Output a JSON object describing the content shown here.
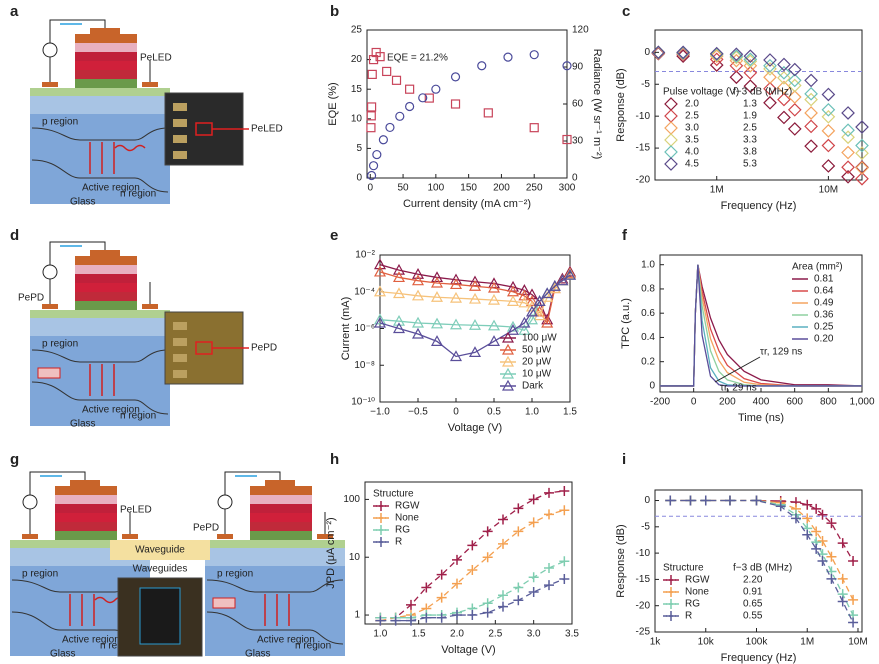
{
  "diagrams": [
    {
      "label": "a",
      "device": "PeLED",
      "photo_label": "PeLED",
      "layers": [
        "p region",
        "Active region",
        "n region",
        "Glass"
      ]
    },
    {
      "label": "d",
      "device": "PePD",
      "photo_label": "PePD",
      "layers": [
        "p region",
        "Active region",
        "n region",
        "Glass"
      ]
    },
    {
      "label": "g",
      "device_left": "PeLED",
      "device_right": "PePD",
      "waveguide": "Waveguide",
      "photo_label": "Waveguides",
      "layers": [
        "p region",
        "Active region",
        "n region",
        "Glass"
      ]
    }
  ],
  "chart_data": [
    {
      "type": "scatter",
      "label": "b",
      "xlabel": "Current density (mA cm⁻²)",
      "ylabel": "EQE (%)",
      "y2label": "Radiance (W sr⁻¹ m⁻²)",
      "annotation": "EQE = 21.2%",
      "xlim": [
        -5,
        300
      ],
      "xticks": [
        0,
        50,
        100,
        150,
        200,
        250,
        300
      ],
      "ylim": [
        0,
        25
      ],
      "yticks": [
        0,
        5,
        10,
        15,
        20,
        25
      ],
      "y2lim": [
        0,
        120
      ],
      "y2ticks": [
        0,
        30,
        60,
        90,
        120
      ],
      "series": [
        {
          "name": "EQE",
          "color": "#c8445a",
          "marker": "square",
          "x": [
            1,
            1.5,
            2,
            3,
            5,
            9,
            15,
            25,
            40,
            60,
            90,
            130,
            180,
            250,
            300
          ],
          "values": [
            8.5,
            10.5,
            12,
            17.5,
            20,
            21.2,
            20.5,
            18,
            16.5,
            15,
            13.5,
            12.5,
            11,
            8.5,
            6.5
          ]
        },
        {
          "name": "Radiance",
          "color": "#4a4a9a",
          "marker": "circle",
          "axis": "y2",
          "x": [
            2,
            5,
            10,
            20,
            30,
            45,
            60,
            80,
            100,
            130,
            170,
            210,
            250,
            300
          ],
          "values": [
            2,
            10,
            19,
            31,
            41,
            50,
            58,
            65,
            72,
            82,
            91,
            98,
            100,
            91
          ]
        }
      ]
    },
    {
      "type": "scatter",
      "label": "c",
      "xlabel": "Frequency (Hz)",
      "ylabel": "Response (dB)",
      "xscale": "log",
      "legend": "lower left",
      "legend_title": "Pulse voltage (V)",
      "legend_title2": "f−3 dB (MHz)",
      "hline": -3,
      "xlim": [
        280000,
        20000000
      ],
      "xticks": [
        {
          "value": 1000000,
          "label": "1M"
        },
        {
          "value": 10000000,
          "label": "10M"
        }
      ],
      "ylim": [
        -20,
        3.5
      ],
      "yticks": [
        0,
        -5,
        -10,
        -15,
        -20
      ],
      "x": [
        300000,
        500000,
        1000000,
        1500000,
        2000000,
        3000000,
        4000000,
        5000000,
        7000000,
        10000000,
        15000000,
        20000000
      ],
      "series": [
        {
          "name": "2.0",
          "f3db": 1.3,
          "color": "#8b1a3a",
          "marker": "diamond",
          "values": [
            -0.2,
            -0.6,
            -2.0,
            -3.9,
            -5.3,
            -7.9,
            -10.2,
            -12.0,
            -14.7,
            -17.8,
            -19.5,
            -18
          ]
        },
        {
          "name": "2.5",
          "f3db": 1.9,
          "color": "#d0454a",
          "marker": "diamond",
          "values": [
            -0.1,
            -0.3,
            -1.1,
            -2.1,
            -3.2,
            -5.7,
            -7.4,
            -9.0,
            -11.6,
            -14.6,
            -18.0,
            -19.8
          ]
        },
        {
          "name": "3.0",
          "f3db": 2.5,
          "color": "#f4a460",
          "marker": "diamond",
          "values": [
            -0.1,
            -0.2,
            -0.6,
            -1.3,
            -2.1,
            -3.9,
            -5.5,
            -7.0,
            -9.5,
            -12.3,
            -15.7,
            -18.1
          ]
        },
        {
          "name": "3.5",
          "f3db": 3.3,
          "color": "#d9d27a",
          "marker": "diamond",
          "values": [
            0,
            -0.1,
            -0.4,
            -0.8,
            -1.4,
            -2.6,
            -4.0,
            -5.2,
            -7.4,
            -10.1,
            -13.3,
            -15.8
          ]
        },
        {
          "name": "4.0",
          "f3db": 3.8,
          "color": "#6cc0b8",
          "marker": "diamond",
          "values": [
            0,
            -0.1,
            -0.3,
            -0.6,
            -1.1,
            -2.1,
            -3.2,
            -4.4,
            -6.5,
            -9.0,
            -12.2,
            -14.6
          ]
        },
        {
          "name": "4.5",
          "f3db": 5.3,
          "color": "#5a4a8a",
          "marker": "diamond",
          "values": [
            0,
            0,
            -0.2,
            -0.3,
            -0.6,
            -1.2,
            -1.9,
            -2.7,
            -4.4,
            -6.6,
            -9.5,
            -11.7
          ]
        }
      ]
    },
    {
      "type": "line",
      "label": "e",
      "xlabel": "Voltage (V)",
      "ylabel": "Current (mA)",
      "yscale": "log",
      "legend": "lower right",
      "xlim": [
        -1,
        1.5
      ],
      "xticks": [
        {
          "value": -1,
          "label": "−1.0"
        },
        {
          "value": -0.5,
          "label": "−0.5"
        },
        0,
        0.5,
        {
          "value": 1,
          "label": "1.0"
        },
        1.5
      ],
      "ylim": [
        1e-10,
        0.01
      ],
      "yticks": [
        {
          "value": 1e-10,
          "label": "10⁻¹⁰"
        },
        {
          "value": 1e-08,
          "label": "10⁻⁸"
        },
        {
          "value": 1e-06,
          "label": "10⁻⁶"
        },
        {
          "value": 0.0001,
          "label": "10⁻⁴"
        },
        {
          "value": 0.01,
          "label": "10⁻²"
        }
      ],
      "x": [
        -1,
        -0.75,
        -0.5,
        -0.25,
        0,
        0.25,
        0.5,
        0.75,
        0.9,
        1.0,
        1.1,
        1.2,
        1.3,
        1.4,
        1.5
      ],
      "series": [
        {
          "name": "100 μW",
          "color": "#8b1a4a",
          "marker": "triangle",
          "values": [
            0.003,
            0.0015,
            0.0009,
            0.0006,
            0.00045,
            0.00035,
            0.00028,
            0.00018,
            0.00012,
            7e-05,
            3e-05,
            3e-06,
            0.0002,
            0.0005,
            0.0012
          ]
        },
        {
          "name": "50 μW",
          "color": "#e06040",
          "marker": "triangle",
          "values": [
            0.0012,
            0.0006,
            0.0004,
            0.0003,
            0.00025,
            0.0002,
            0.00016,
            0.0001,
            6e-05,
            3e-05,
            8e-06,
            2e-06,
            0.00015,
            0.0004,
            0.001
          ]
        },
        {
          "name": "20 μW",
          "color": "#f6c27a",
          "marker": "triangle",
          "values": [
            0.0001,
            8e-05,
            6e-05,
            5e-05,
            4.5e-05,
            4e-05,
            3.5e-05,
            3e-05,
            2.5e-05,
            1.5e-05,
            5e-06,
            5e-05,
            0.00015,
            0.0004,
            0.0009
          ]
        },
        {
          "name": "10 μW",
          "color": "#7ecdb9",
          "marker": "triangle",
          "values": [
            3e-06,
            2.5e-06,
            2e-06,
            1.8e-06,
            1.6e-06,
            1.5e-06,
            1.4e-06,
            1.2e-06,
            8e-07,
            3e-06,
            3e-05,
            8e-05,
            0.0002,
            0.0004,
            0.0008
          ]
        },
        {
          "name": "Dark",
          "color": "#5a4e9a",
          "marker": "triangle",
          "values": [
            2e-06,
            1e-06,
            5e-07,
            2e-07,
            3e-08,
            5e-08,
            2e-07,
            8e-07,
            2e-06,
            8e-06,
            3e-05,
            8e-05,
            0.0002,
            0.0004,
            0.0008
          ]
        }
      ]
    },
    {
      "type": "line",
      "label": "f",
      "xlabel": "Time (ns)",
      "ylabel": "TPC (a.u.)",
      "legend": "upper right",
      "legend_title": "Area (mm²)",
      "annotations": [
        "τr, 129 ns",
        "τr, 29 ns"
      ],
      "xlim": [
        -200,
        1000
      ],
      "xticks": [
        -200,
        0,
        200,
        400,
        600,
        800,
        {
          "value": 1000,
          "label": "1,000"
        }
      ],
      "ylim": [
        -0.05,
        1.08
      ],
      "yticks": [
        0,
        0.2,
        0.4,
        0.6,
        0.8,
        {
          "value": 1,
          "label": "1.0"
        }
      ],
      "x": [
        -200,
        -100,
        0,
        10,
        25,
        50,
        100,
        150,
        200,
        300,
        400,
        600,
        800,
        1000
      ],
      "series": [
        {
          "name": "0.81",
          "color": "#8b1a4a",
          "values": [
            0,
            0,
            0,
            0.6,
            1,
            0.82,
            0.56,
            0.38,
            0.26,
            0.12,
            0.05,
            0.01,
            0.01,
            0
          ]
        },
        {
          "name": "0.64",
          "color": "#d94a4a",
          "values": [
            0,
            0,
            0,
            0.6,
            1,
            0.78,
            0.47,
            0.29,
            0.17,
            0.06,
            0.02,
            0,
            0,
            0
          ]
        },
        {
          "name": "0.49",
          "color": "#f4a460",
          "values": [
            0,
            0,
            0,
            0.6,
            1,
            0.73,
            0.39,
            0.21,
            0.11,
            0.03,
            0.01,
            0,
            0,
            0
          ]
        },
        {
          "name": "0.36",
          "color": "#8fd0a0",
          "values": [
            0,
            0,
            0,
            0.6,
            1,
            0.66,
            0.29,
            0.12,
            0.05,
            0.01,
            0,
            0,
            0,
            0
          ]
        },
        {
          "name": "0.25",
          "color": "#5ab0c0",
          "values": [
            0,
            0,
            0,
            0.6,
            1,
            0.54,
            0.15,
            0.04,
            0.01,
            0,
            0,
            0,
            0,
            0
          ]
        },
        {
          "name": "0.20",
          "color": "#5a4e9a",
          "values": [
            0,
            0,
            0,
            0.6,
            1,
            0.42,
            0.08,
            0.01,
            0,
            0,
            0,
            0,
            0,
            0
          ]
        }
      ]
    },
    {
      "type": "line",
      "label": "h",
      "xlabel": "Voltage (V)",
      "ylabel": "JPD (μA cm⁻²)",
      "yscale": "log",
      "dashed": true,
      "legend": "upper left",
      "legend_title": "Structure",
      "xlim": [
        0.8,
        3.5
      ],
      "xticks": [
        {
          "value": 1,
          "label": "1.0"
        },
        1.5,
        {
          "value": 2,
          "label": "2.0"
        },
        2.5,
        {
          "value": 3,
          "label": "3.0"
        },
        3.5
      ],
      "ylim": [
        0.7,
        200
      ],
      "yticks": [
        1,
        10,
        100
      ],
      "x": [
        1.0,
        1.2,
        1.4,
        1.6,
        1.8,
        2.0,
        2.2,
        2.4,
        2.6,
        2.8,
        3.0,
        3.2,
        3.4
      ],
      "series": [
        {
          "name": "RGW",
          "color": "#a0204a",
          "marker": "plus",
          "values": [
            0.9,
            0.9,
            1.5,
            3,
            5,
            9,
            16,
            28,
            45,
            70,
            100,
            130,
            140
          ]
        },
        {
          "name": "None",
          "color": "#f4a050",
          "marker": "plus",
          "values": [
            0.8,
            0.9,
            1.0,
            1.3,
            2,
            3.5,
            6,
            10,
            17,
            28,
            40,
            55,
            65
          ]
        },
        {
          "name": "RG",
          "color": "#7ecdb0",
          "marker": "plus",
          "values": [
            0.9,
            0.9,
            0.9,
            1,
            1,
            1.1,
            1.3,
            1.6,
            2.2,
            3,
            4.5,
            6.5,
            8.5
          ]
        },
        {
          "name": "R",
          "color": "#5a5e9a",
          "marker": "plus",
          "values": [
            0.8,
            0.8,
            0.8,
            0.9,
            0.9,
            1,
            1,
            1.1,
            1.4,
            1.8,
            2.5,
            3.3,
            4.2
          ]
        }
      ]
    },
    {
      "type": "line",
      "label": "i",
      "xlabel": "Frequency (Hz)",
      "ylabel": "Response (dB)",
      "xscale": "log",
      "dashed": true,
      "hline": -3,
      "legend": "lower left",
      "legend_title": "Structure",
      "legend_title2": "f−3 dB (MHz)",
      "xlim": [
        1000,
        12000000
      ],
      "xticks": [
        {
          "value": 1000,
          "label": "1k"
        },
        {
          "value": 10000,
          "label": "10k"
        },
        {
          "value": 100000,
          "label": "100k"
        },
        {
          "value": 1000000,
          "label": "1M"
        },
        {
          "value": 10000000,
          "label": "10M"
        }
      ],
      "ylim": [
        -25,
        2
      ],
      "yticks": [
        0,
        -5,
        -10,
        -15,
        -20,
        -25
      ],
      "x": [
        2000,
        5000,
        10000,
        30000,
        100000,
        300000,
        600000,
        1000000,
        1500000,
        2000000,
        3000000,
        5000000,
        8000000
      ],
      "series": [
        {
          "name": "RGW",
          "f3db": 2.2,
          "f3db_label": "2.20",
          "color": "#a0204a",
          "marker": "plus",
          "values": [
            0,
            0,
            0,
            0,
            0,
            -0.1,
            -0.3,
            -0.8,
            -1.6,
            -2.7,
            -4.3,
            -8.1,
            -11.5
          ]
        },
        {
          "name": "None",
          "f3db": 0.91,
          "color": "#f4a050",
          "marker": "plus",
          "values": [
            0,
            0,
            0,
            0,
            0,
            -0.4,
            -1.6,
            -3.4,
            -5.9,
            -7.7,
            -10.7,
            -14.9,
            -18.9
          ]
        },
        {
          "name": "RG",
          "f3db": 0.65,
          "color": "#7ecdb0",
          "marker": "plus",
          "values": [
            0,
            0,
            0,
            0,
            0,
            -0.8,
            -2.7,
            -5.3,
            -7.9,
            -10.2,
            -13.5,
            -17.8,
            -21.8
          ]
        },
        {
          "name": "R",
          "f3db": 0.55,
          "color": "#5a5e9a",
          "marker": "plus",
          "values": [
            0,
            0,
            0,
            0,
            0,
            -1.1,
            -3.4,
            -6.5,
            -9.2,
            -11.5,
            -14.9,
            -19.2,
            -23.2
          ]
        }
      ]
    }
  ]
}
